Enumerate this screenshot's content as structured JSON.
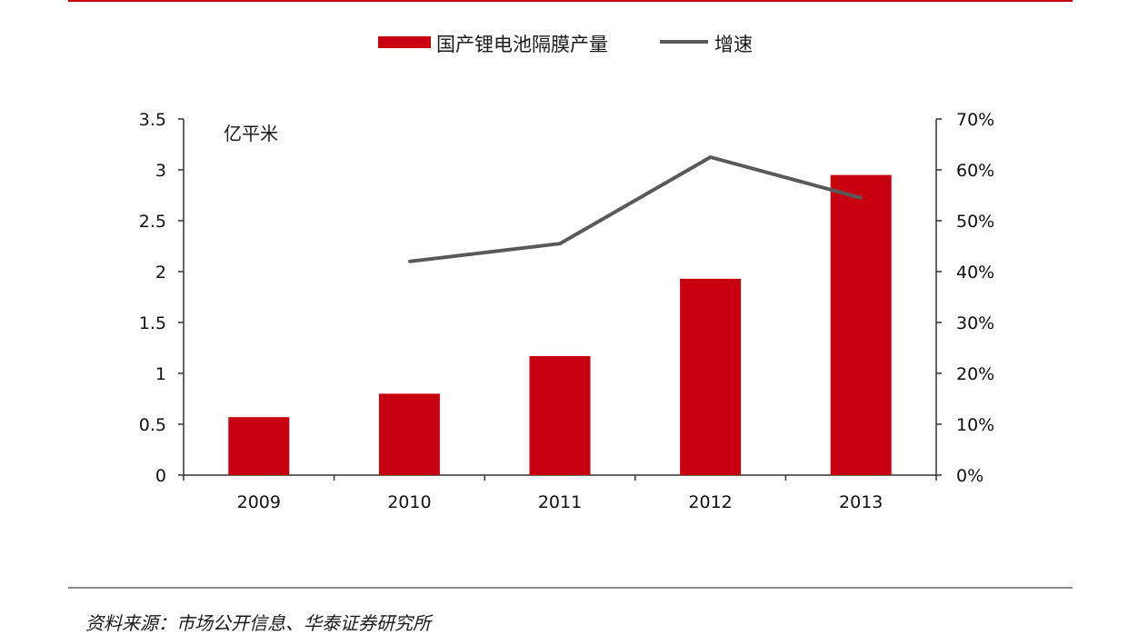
{
  "chart_data": {
    "type": "bar",
    "categories": [
      "2009",
      "2010",
      "2011",
      "2012",
      "2013"
    ],
    "series": [
      {
        "name": "国产锂电池隔膜产量",
        "type": "bar",
        "axis": "left",
        "color": "#c8000f",
        "values": [
          0.57,
          0.8,
          1.17,
          1.93,
          2.95
        ]
      },
      {
        "name": "增速",
        "type": "line",
        "axis": "right",
        "color": "#595959",
        "values": [
          null,
          0.42,
          0.455,
          0.625,
          0.545
        ]
      }
    ],
    "y_left": {
      "unit_label": "亿平米",
      "ylim": [
        0,
        3.5
      ],
      "ticks": [
        0,
        0.5,
        1,
        1.5,
        2,
        2.5,
        3,
        3.5
      ],
      "tick_labels": [
        "0",
        "0.5",
        "1",
        "1.5",
        "2",
        "2.5",
        "3",
        "3.5"
      ]
    },
    "y_right": {
      "ylim": [
        0,
        0.7
      ],
      "ticks": [
        0,
        0.1,
        0.2,
        0.3,
        0.4,
        0.5,
        0.6,
        0.7
      ],
      "tick_labels": [
        "0%",
        "10%",
        "20%",
        "30%",
        "40%",
        "50%",
        "60%",
        "70%"
      ]
    },
    "legend_position": "top-center",
    "grid": false
  },
  "source_text": "资料来源：市场公开信息、华泰证券研究所"
}
